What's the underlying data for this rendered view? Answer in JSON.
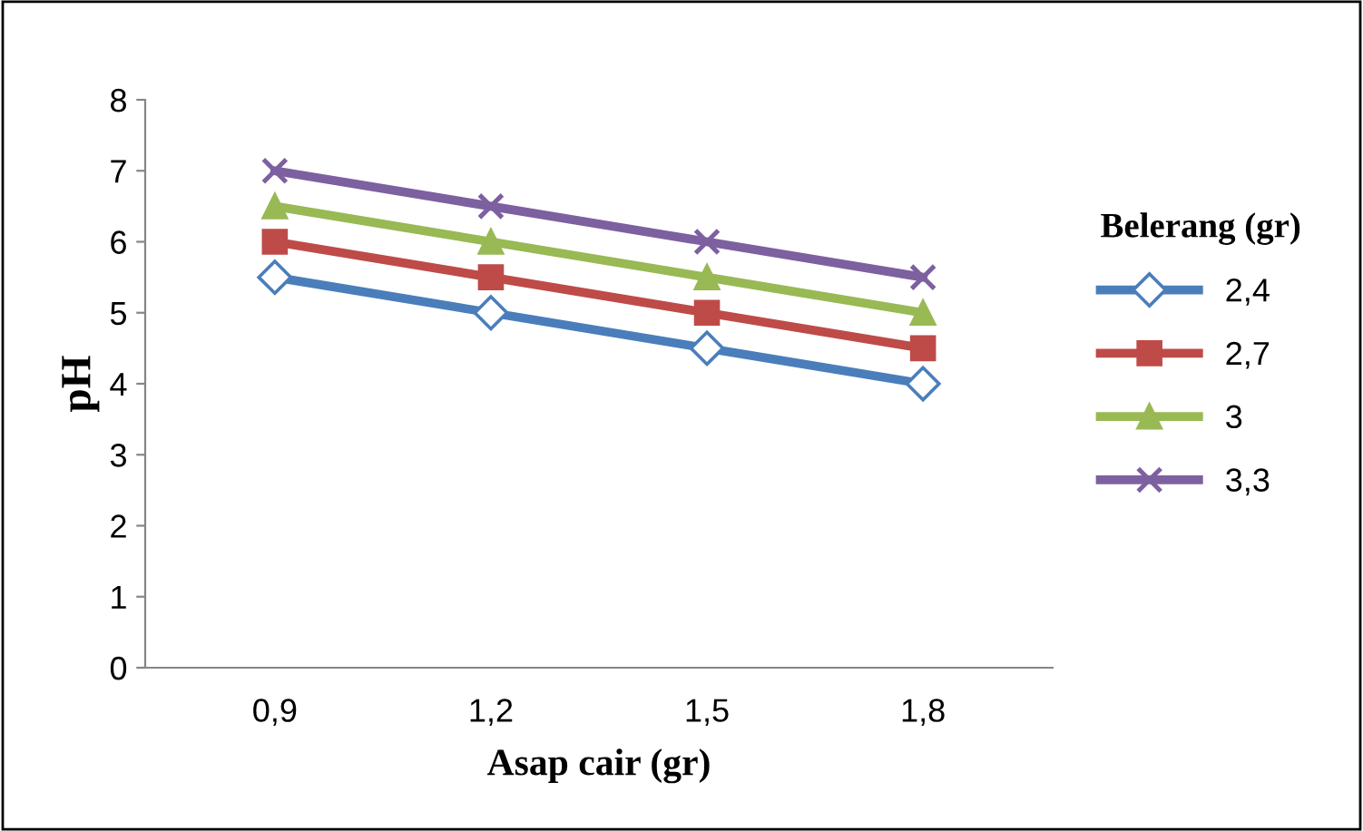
{
  "chart_data": {
    "type": "line",
    "xlabel": "Asap cair (gr)",
    "ylabel": "pH",
    "legend_title": "Belerang (gr)",
    "categories": [
      "0,9",
      "1,2",
      "1,5",
      "1,8"
    ],
    "series": [
      {
        "name": "2,4",
        "color": "#4a7ebb",
        "marker": "diamond",
        "values": [
          5.5,
          5,
          4.5,
          4
        ]
      },
      {
        "name": "2,7",
        "color": "#be4b48",
        "marker": "square",
        "values": [
          6,
          5.5,
          5,
          4.5
        ]
      },
      {
        "name": "3",
        "color": "#98b954",
        "marker": "triangle",
        "values": [
          6.5,
          6,
          5.5,
          5
        ]
      },
      {
        "name": "3,3",
        "color": "#7d60a0",
        "marker": "cross",
        "values": [
          7,
          6.5,
          6,
          5.5
        ]
      }
    ],
    "ylim": [
      0,
      8
    ],
    "yticks": [
      0,
      1,
      2,
      3,
      4,
      5,
      6,
      7,
      8
    ],
    "grid": false,
    "legend": "right",
    "line_style": "solid"
  }
}
